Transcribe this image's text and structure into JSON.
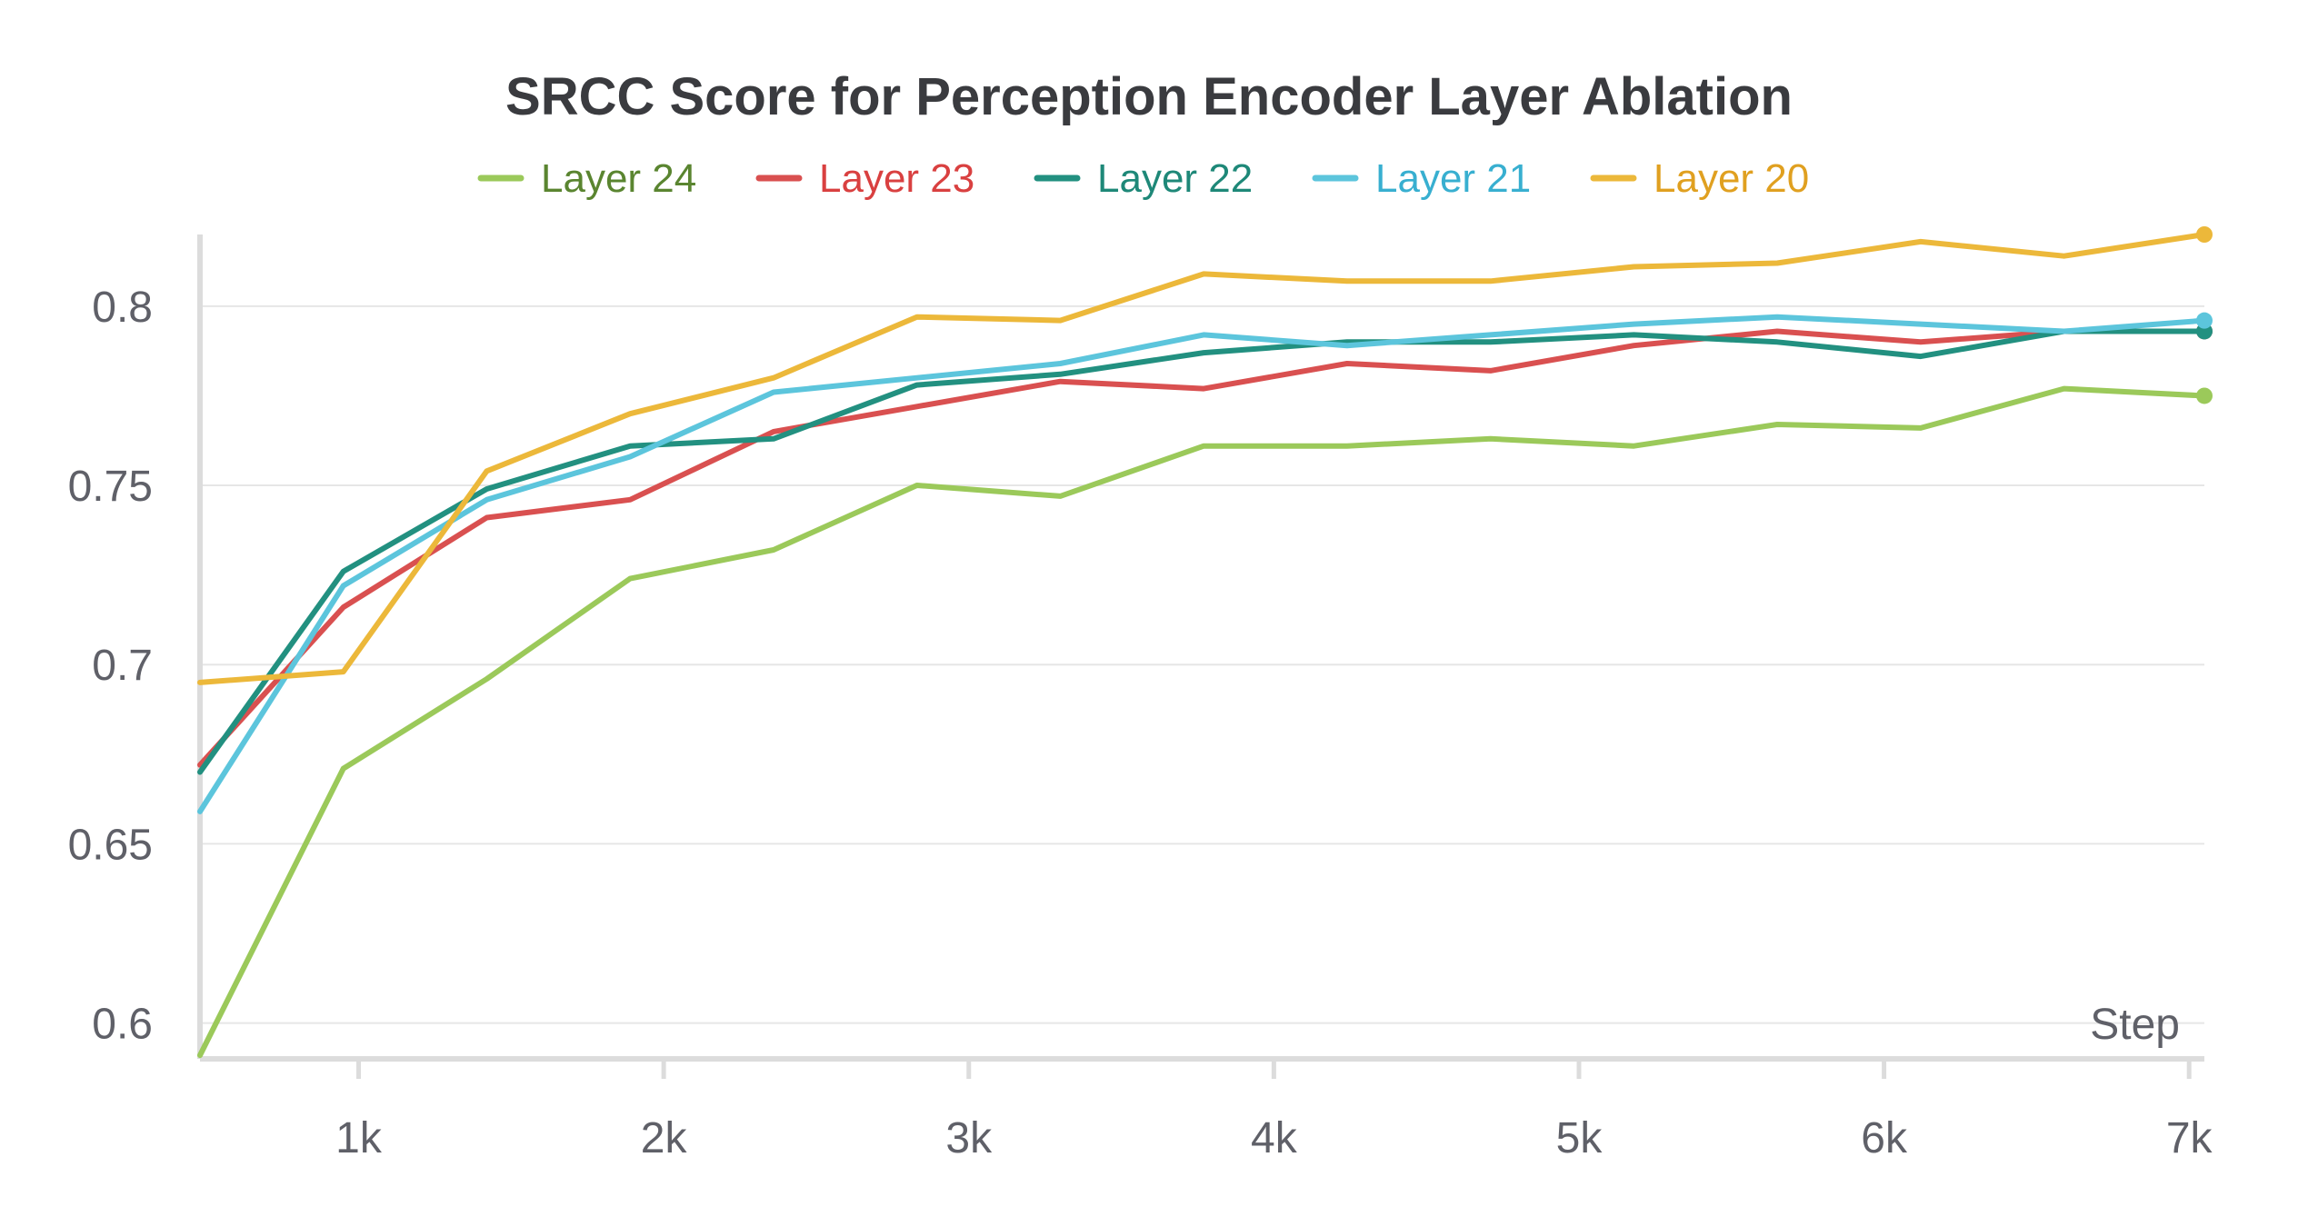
{
  "chart_data": {
    "type": "line",
    "title": "SRCC Score for Perception Encoder Layer Ablation",
    "xlabel": "Step",
    "ylabel": "",
    "xlim": [
      480,
      7050
    ],
    "ylim": [
      0.59,
      0.82
    ],
    "xticks": [
      {
        "value": 1000,
        "label": "1k"
      },
      {
        "value": 2000,
        "label": "2k"
      },
      {
        "value": 3000,
        "label": "3k"
      },
      {
        "value": 4000,
        "label": "4k"
      },
      {
        "value": 5000,
        "label": "5k"
      },
      {
        "value": 6000,
        "label": "6k"
      },
      {
        "value": 7000,
        "label": "7k"
      }
    ],
    "yticks": [
      {
        "value": 0.6,
        "label": "0.6"
      },
      {
        "value": 0.65,
        "label": "0.65"
      },
      {
        "value": 0.7,
        "label": "0.7"
      },
      {
        "value": 0.75,
        "label": "0.75"
      },
      {
        "value": 0.8,
        "label": "0.8"
      }
    ],
    "grid": true,
    "legend_position": "top-center",
    "x": [
      480,
      950,
      1420,
      1890,
      2360,
      2830,
      3300,
      3770,
      4240,
      4710,
      5180,
      5650,
      6120,
      6590,
      7050
    ],
    "series": [
      {
        "name": "Layer 24",
        "color": "#9bc95a",
        "text_color": "#5a8530",
        "values": [
          0.591,
          0.671,
          0.696,
          0.724,
          0.732,
          0.75,
          0.747,
          0.761,
          0.761,
          0.763,
          0.761,
          0.767,
          0.766,
          0.777,
          0.775
        ]
      },
      {
        "name": "Layer 23",
        "color": "#d95050",
        "text_color": "#d94040",
        "values": [
          0.672,
          0.716,
          0.741,
          0.746,
          0.765,
          0.772,
          0.779,
          0.777,
          0.784,
          0.782,
          0.789,
          0.793,
          0.79,
          0.793,
          0.793
        ]
      },
      {
        "name": "Layer 22",
        "color": "#229080",
        "text_color": "#1e8878",
        "values": [
          0.67,
          0.726,
          0.749,
          0.761,
          0.763,
          0.778,
          0.781,
          0.787,
          0.79,
          0.79,
          0.792,
          0.79,
          0.786,
          0.793,
          0.793
        ]
      },
      {
        "name": "Layer 21",
        "color": "#5cc5dc",
        "text_color": "#38afd0",
        "values": [
          0.659,
          0.722,
          0.746,
          0.758,
          0.776,
          0.78,
          0.784,
          0.792,
          0.789,
          0.792,
          0.795,
          0.797,
          0.795,
          0.793,
          0.796
        ]
      },
      {
        "name": "Layer 20",
        "color": "#ecb83a",
        "text_color": "#e0a020",
        "values": [
          0.695,
          0.698,
          0.754,
          0.77,
          0.78,
          0.797,
          0.796,
          0.809,
          0.807,
          0.807,
          0.811,
          0.812,
          0.818,
          0.814,
          0.82
        ]
      }
    ]
  }
}
